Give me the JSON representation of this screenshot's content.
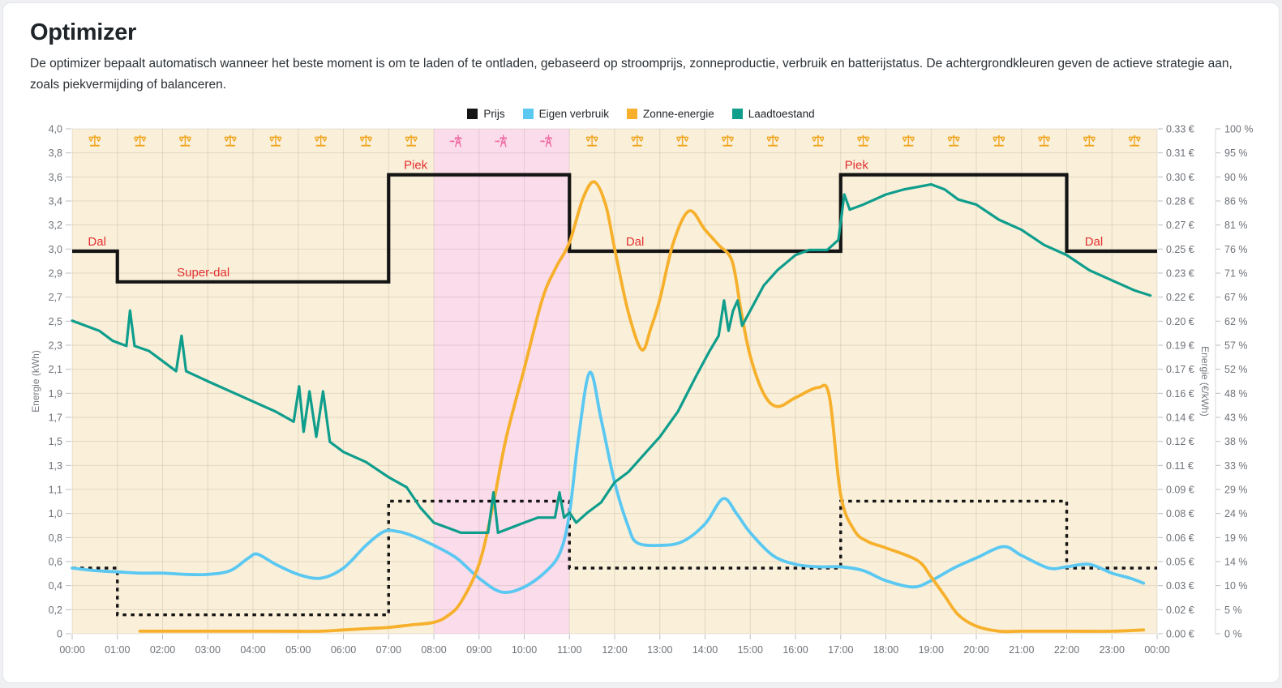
{
  "page": {
    "title": "Optimizer",
    "description": "De optimizer bepaalt automatisch wanneer het beste moment is om te laden of te ontladen, gebaseerd op stroomprijs, zonneproductie, verbruik en batterijstatus. De achtergrondkleuren geven de actieve strategie aan, zoals piekvermijding of balanceren."
  },
  "legend": [
    {
      "label": "Prijs",
      "color": "#141414"
    },
    {
      "label": "Eigen verbruik",
      "color": "#5bc8f2"
    },
    {
      "label": "Zonne-energie",
      "color": "#f6b02c"
    },
    {
      "label": "Laadtoestand",
      "color": "#0f9d8c"
    }
  ],
  "chart_data": {
    "type": "line",
    "x_axis": {
      "range_hours": [
        0,
        24
      ],
      "labels": [
        "00:00",
        "01:00",
        "02:00",
        "03:00",
        "04:00",
        "05:00",
        "06:00",
        "07:00",
        "08:00",
        "09:00",
        "10:00",
        "11:00",
        "12:00",
        "13:00",
        "14:00",
        "15:00",
        "16:00",
        "17:00",
        "18:00",
        "19:00",
        "20:00",
        "21:00",
        "22:00",
        "23:00",
        "00:00"
      ]
    },
    "y_left": {
      "title": "Energie (kWh)",
      "min": 0,
      "max": 4,
      "labels": [
        "4,0",
        "3,8",
        "3,6",
        "3,4",
        "3,2",
        "3,0",
        "2,9",
        "2,7",
        "2,5",
        "2,3",
        "2,1",
        "1,9",
        "1,7",
        "1,5",
        "1,3",
        "1,1",
        "1,0",
        "0,8",
        "0,6",
        "0,4",
        "0,2",
        "0"
      ]
    },
    "y_right_euro": {
      "title": "Energie (€/kWh)",
      "min": 0,
      "max": 0.33,
      "labels": [
        "0.33 €",
        "0.31 €",
        "0.30 €",
        "0.28 €",
        "0.27 €",
        "0.25 €",
        "0.23 €",
        "0.22 €",
        "0.20 €",
        "0.19 €",
        "0.17 €",
        "0.16 €",
        "0.14 €",
        "0.12 €",
        "0.11 €",
        "0.09 €",
        "0.08 €",
        "0.06 €",
        "0.05 €",
        "0.03 €",
        "0.02 €",
        "0.00 €"
      ]
    },
    "y_right_pct": {
      "min": 0,
      "max": 100,
      "labels": [
        "100 %",
        "95 %",
        "90 %",
        "86 %",
        "81 %",
        "76 %",
        "71 %",
        "67 %",
        "62 %",
        "57 %",
        "52 %",
        "48 %",
        "43 %",
        "38 %",
        "33 %",
        "29 %",
        "24 %",
        "19 %",
        "14 %",
        "10 %",
        "5 %",
        "0 %"
      ]
    },
    "colors": {
      "background_balance": "#faf0da",
      "background_peak": "#fbdcea",
      "grid": "rgba(90,80,60,0.14)",
      "balance_icon": "#f0a51f",
      "peak_icon": "#ef6ea6",
      "annotation_red": "#e22f2f"
    },
    "strategy_bands": [
      {
        "from": 0,
        "to": 8,
        "strategy": "balanceren"
      },
      {
        "from": 8,
        "to": 11,
        "strategy": "piekvermijding"
      },
      {
        "from": 11,
        "to": 24,
        "strategy": "balanceren"
      }
    ],
    "strategy_icons_per_hour": [
      "balanceren",
      "balanceren",
      "balanceren",
      "balanceren",
      "balanceren",
      "balanceren",
      "balanceren",
      "balanceren",
      "piekvermijding",
      "piekvermijding",
      "piekvermijding",
      "balanceren",
      "balanceren",
      "balanceren",
      "balanceren",
      "balanceren",
      "balanceren",
      "balanceren",
      "balanceren",
      "balanceren",
      "balanceren",
      "balanceren",
      "balanceren",
      "balanceren"
    ],
    "annotations": [
      {
        "text": "Dal",
        "hour": 0.55,
        "eur": 0.25
      },
      {
        "text": "Super-dal",
        "hour": 2.9,
        "eur": 0.23
      },
      {
        "text": "Piek",
        "hour": 7.6,
        "eur": 0.3
      },
      {
        "text": "Dal",
        "hour": 12.45,
        "eur": 0.25
      },
      {
        "text": "Piek",
        "hour": 17.35,
        "eur": 0.3
      },
      {
        "text": "Dal",
        "hour": 22.6,
        "eur": 0.25
      }
    ],
    "series": {
      "prijs": {
        "axis": "euro",
        "style": "step-solid",
        "color": "#141414",
        "steps": [
          {
            "from": 0,
            "to": 1,
            "eur": 0.25
          },
          {
            "from": 1,
            "to": 7,
            "eur": 0.23
          },
          {
            "from": 7,
            "to": 11,
            "eur": 0.3
          },
          {
            "from": 11,
            "to": 17,
            "eur": 0.25
          },
          {
            "from": 17,
            "to": 22,
            "eur": 0.3
          },
          {
            "from": 22,
            "to": 24,
            "eur": 0.25
          }
        ]
      },
      "drempel_gestippeld": {
        "axis": "kwh",
        "style": "step-dotted",
        "color": "#141414",
        "steps": [
          {
            "from": 0,
            "to": 1,
            "kwh": 0.52
          },
          {
            "from": 1,
            "to": 7,
            "kwh": 0.15
          },
          {
            "from": 7,
            "to": 11,
            "kwh": 1.05
          },
          {
            "from": 11,
            "to": 17,
            "kwh": 0.52
          },
          {
            "from": 17,
            "to": 22,
            "kwh": 1.05
          },
          {
            "from": 22,
            "to": 24,
            "kwh": 0.52
          }
        ]
      },
      "eigen_verbruik": {
        "axis": "kwh",
        "style": "smooth",
        "color": "#5bc8f2",
        "points": [
          [
            0,
            0.52
          ],
          [
            0.5,
            0.5
          ],
          [
            1,
            0.49
          ],
          [
            1.5,
            0.48
          ],
          [
            2,
            0.48
          ],
          [
            2.5,
            0.47
          ],
          [
            3,
            0.47
          ],
          [
            3.5,
            0.5
          ],
          [
            3.9,
            0.6
          ],
          [
            4.1,
            0.63
          ],
          [
            4.5,
            0.55
          ],
          [
            5,
            0.47
          ],
          [
            5.5,
            0.44
          ],
          [
            6,
            0.52
          ],
          [
            6.5,
            0.7
          ],
          [
            6.9,
            0.81
          ],
          [
            7.2,
            0.81
          ],
          [
            7.5,
            0.78
          ],
          [
            8,
            0.7
          ],
          [
            8.5,
            0.6
          ],
          [
            9,
            0.44
          ],
          [
            9.5,
            0.33
          ],
          [
            10,
            0.37
          ],
          [
            10.5,
            0.5
          ],
          [
            10.8,
            0.65
          ],
          [
            11,
            0.95
          ],
          [
            11.2,
            1.55
          ],
          [
            11.45,
            2.07
          ],
          [
            11.7,
            1.7
          ],
          [
            12,
            1.2
          ],
          [
            12.3,
            0.85
          ],
          [
            12.5,
            0.72
          ],
          [
            13,
            0.7
          ],
          [
            13.5,
            0.73
          ],
          [
            14,
            0.87
          ],
          [
            14.4,
            1.07
          ],
          [
            14.7,
            0.95
          ],
          [
            15,
            0.8
          ],
          [
            15.5,
            0.62
          ],
          [
            16,
            0.55
          ],
          [
            16.5,
            0.53
          ],
          [
            17,
            0.53
          ],
          [
            17.5,
            0.5
          ],
          [
            18,
            0.42
          ],
          [
            18.6,
            0.37
          ],
          [
            19,
            0.42
          ],
          [
            19.5,
            0.52
          ],
          [
            20,
            0.6
          ],
          [
            20.6,
            0.69
          ],
          [
            21,
            0.62
          ],
          [
            21.6,
            0.52
          ],
          [
            22,
            0.53
          ],
          [
            22.5,
            0.55
          ],
          [
            23,
            0.48
          ],
          [
            23.4,
            0.44
          ],
          [
            23.7,
            0.4
          ]
        ]
      },
      "zonne_energie": {
        "axis": "kwh",
        "style": "smooth",
        "color": "#f6b02c",
        "points": [
          [
            1.5,
            0.02
          ],
          [
            3,
            0.02
          ],
          [
            4.5,
            0.02
          ],
          [
            5.5,
            0.02
          ],
          [
            6,
            0.03
          ],
          [
            6.5,
            0.04
          ],
          [
            7,
            0.05
          ],
          [
            7.5,
            0.07
          ],
          [
            8,
            0.09
          ],
          [
            8.3,
            0.14
          ],
          [
            8.6,
            0.25
          ],
          [
            9,
            0.55
          ],
          [
            9.3,
            1.0
          ],
          [
            9.6,
            1.55
          ],
          [
            10,
            2.1
          ],
          [
            10.4,
            2.65
          ],
          [
            10.7,
            2.9
          ],
          [
            11,
            3.1
          ],
          [
            11.3,
            3.45
          ],
          [
            11.55,
            3.58
          ],
          [
            11.8,
            3.4
          ],
          [
            12,
            3.05
          ],
          [
            12.3,
            2.55
          ],
          [
            12.6,
            2.25
          ],
          [
            12.8,
            2.42
          ],
          [
            13,
            2.65
          ],
          [
            13.3,
            3.1
          ],
          [
            13.65,
            3.35
          ],
          [
            14,
            3.2
          ],
          [
            14.3,
            3.08
          ],
          [
            14.6,
            2.95
          ],
          [
            14.8,
            2.55
          ],
          [
            15,
            2.2
          ],
          [
            15.3,
            1.9
          ],
          [
            15.6,
            1.8
          ],
          [
            16,
            1.87
          ],
          [
            16.5,
            1.95
          ],
          [
            16.75,
            1.88
          ],
          [
            17,
            1.1
          ],
          [
            17.3,
            0.82
          ],
          [
            17.6,
            0.73
          ],
          [
            18,
            0.68
          ],
          [
            18.7,
            0.58
          ],
          [
            19,
            0.45
          ],
          [
            19.3,
            0.3
          ],
          [
            19.6,
            0.15
          ],
          [
            20,
            0.06
          ],
          [
            20.5,
            0.02
          ],
          [
            21,
            0.02
          ],
          [
            22,
            0.02
          ],
          [
            23,
            0.02
          ],
          [
            23.7,
            0.03
          ]
        ]
      },
      "laadtoestand": {
        "axis": "pct",
        "style": "line",
        "color": "#0f9d8c",
        "points": [
          [
            0,
            62
          ],
          [
            0.3,
            61
          ],
          [
            0.6,
            60
          ],
          [
            0.9,
            58
          ],
          [
            1.2,
            57
          ],
          [
            1.28,
            64
          ],
          [
            1.38,
            57
          ],
          [
            1.7,
            56
          ],
          [
            2,
            54
          ],
          [
            2.3,
            52
          ],
          [
            2.42,
            59
          ],
          [
            2.52,
            52
          ],
          [
            3,
            50
          ],
          [
            3.5,
            48
          ],
          [
            4,
            46
          ],
          [
            4.5,
            44
          ],
          [
            4.9,
            42
          ],
          [
            5.02,
            49
          ],
          [
            5.12,
            40
          ],
          [
            5.25,
            48
          ],
          [
            5.4,
            39
          ],
          [
            5.55,
            48
          ],
          [
            5.7,
            38
          ],
          [
            6,
            36
          ],
          [
            6.5,
            34
          ],
          [
            7,
            31
          ],
          [
            7.4,
            29
          ],
          [
            7.7,
            25
          ],
          [
            8,
            22
          ],
          [
            8.3,
            21
          ],
          [
            8.6,
            20
          ],
          [
            9.2,
            20
          ],
          [
            9.32,
            28
          ],
          [
            9.42,
            20
          ],
          [
            10,
            22
          ],
          [
            10.3,
            23
          ],
          [
            10.68,
            23
          ],
          [
            10.78,
            28
          ],
          [
            10.88,
            23
          ],
          [
            11,
            24
          ],
          [
            11.15,
            22
          ],
          [
            11.4,
            24
          ],
          [
            11.7,
            26
          ],
          [
            12,
            30
          ],
          [
            12.3,
            32
          ],
          [
            12.6,
            35
          ],
          [
            13,
            39
          ],
          [
            13.4,
            44
          ],
          [
            13.8,
            51
          ],
          [
            14.1,
            56
          ],
          [
            14.3,
            59
          ],
          [
            14.42,
            66
          ],
          [
            14.52,
            60
          ],
          [
            14.62,
            64
          ],
          [
            14.72,
            66
          ],
          [
            14.82,
            61
          ],
          [
            15,
            64
          ],
          [
            15.3,
            69
          ],
          [
            15.6,
            72
          ],
          [
            16,
            75
          ],
          [
            16.3,
            76
          ],
          [
            16.7,
            76
          ],
          [
            16.95,
            78
          ],
          [
            17.08,
            87
          ],
          [
            17.2,
            84
          ],
          [
            17.5,
            85
          ],
          [
            18,
            87
          ],
          [
            18.4,
            88
          ],
          [
            19,
            89
          ],
          [
            19.3,
            88
          ],
          [
            19.6,
            86
          ],
          [
            20,
            85
          ],
          [
            20.5,
            82
          ],
          [
            21,
            80
          ],
          [
            21.5,
            77
          ],
          [
            22,
            75
          ],
          [
            22.5,
            72
          ],
          [
            23,
            70
          ],
          [
            23.5,
            68
          ],
          [
            23.85,
            67
          ]
        ]
      }
    }
  }
}
